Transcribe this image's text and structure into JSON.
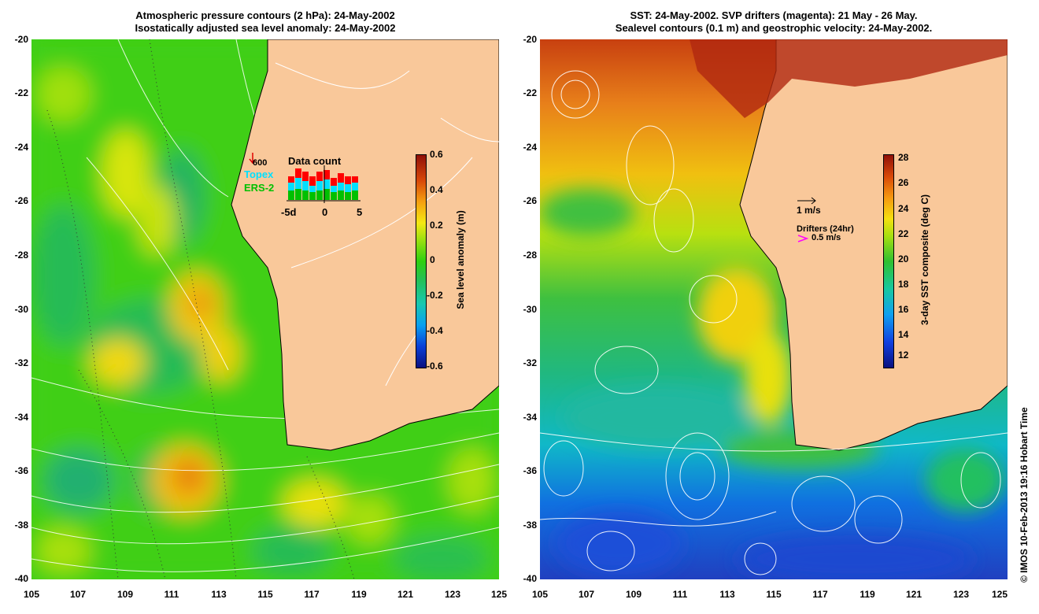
{
  "left": {
    "title_line1": "Atmospheric pressure contours (2 hPa): 24-May-2002",
    "title_line2": "Isostatically adjusted sea level anomaly: 24-May-2002",
    "colorbar": {
      "label": "Sea level anomaly (m)",
      "ticks": [
        "0.6",
        "0.4",
        "0.2",
        "0",
        "-0.2",
        "-0.4",
        "-0.6"
      ]
    },
    "inset": {
      "title": "Data count",
      "value": "600",
      "series": [
        "Topex",
        "ERS-2"
      ],
      "series_colors": [
        "#00e0ff",
        "#00c000"
      ],
      "top_color": "#ff0000",
      "x_ticks": [
        "-5d",
        "0",
        "5"
      ]
    }
  },
  "right": {
    "title_line1": "SST: 24-May-2002. SVP drifters (magenta): 21 May - 26 May.",
    "title_line2": "Sealevel contours (0.1 m) and geostrophic velocity: 24-May-2002.",
    "colorbar": {
      "label": "3-day SST composite (deg C)",
      "ticks": [
        "28",
        "26",
        "24",
        "22",
        "20",
        "18",
        "16",
        "14",
        "12"
      ]
    },
    "legend": {
      "velocity": "1 m/s",
      "drifters_title": "Drifters (24hr)",
      "drifters_speed": "0.5 m/s",
      "drifter_color": "#ff00ff"
    }
  },
  "axes": {
    "y_ticks": [
      "-20",
      "-22",
      "-24",
      "-26",
      "-28",
      "-30",
      "-32",
      "-34",
      "-36",
      "-38",
      "-40"
    ],
    "x_ticks": [
      "105",
      "107",
      "109",
      "111",
      "113",
      "115",
      "117",
      "119",
      "121",
      "123",
      "125"
    ],
    "lon_range": [
      105,
      125
    ],
    "lat_range": [
      -40,
      -20
    ]
  },
  "land_color": "#f9c89a",
  "credit": "© IMOS 10-Feb-2013 19:16 Hobart Time"
}
